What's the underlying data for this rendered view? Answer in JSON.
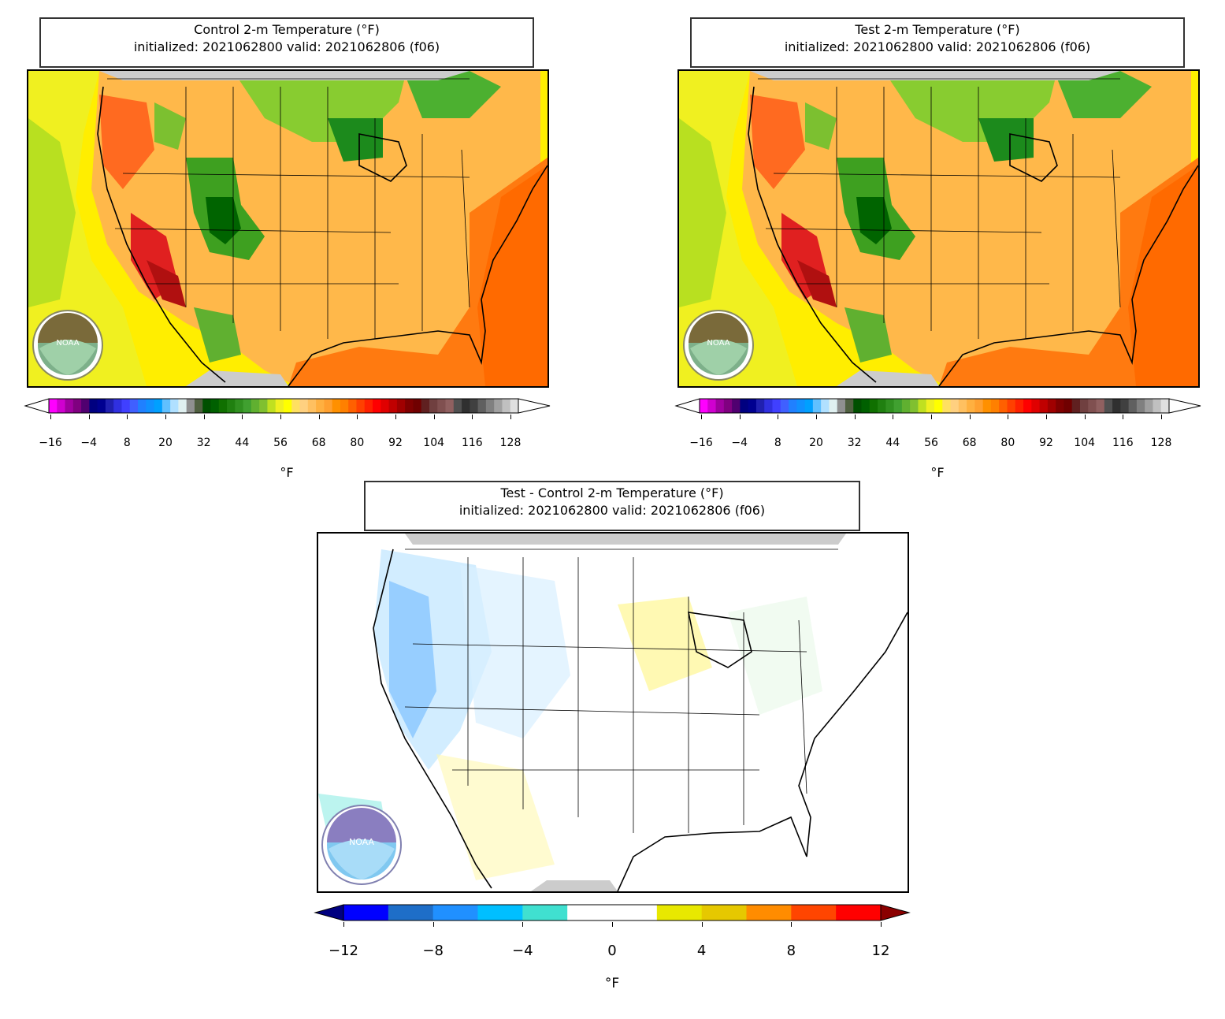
{
  "panels": {
    "control": {
      "title_line1": "Control 2-m Temperature (°F)",
      "title_line2": "initialized: 2021062800 valid: 2021062806 (f06)"
    },
    "test": {
      "title_line1": "Test 2-m Temperature (°F)",
      "title_line2": "initialized: 2021062800 valid: 2021062806 (f06)"
    },
    "diff": {
      "title_line1": "Test - Control 2-m Temperature (°F)",
      "title_line2": "initialized: 2021062800 valid: 2021062806 (f06)"
    }
  },
  "temp_colorbar": {
    "units": "°F",
    "ticks": [
      "−16",
      "−4",
      "8",
      "20",
      "32",
      "44",
      "56",
      "68",
      "80",
      "92",
      "104",
      "116",
      "128"
    ],
    "colors": [
      "#ff00ff",
      "#d000d0",
      "#a000a0",
      "#800080",
      "#500070",
      "#000080",
      "#000090",
      "#2020b0",
      "#3030e0",
      "#4040ff",
      "#4060ff",
      "#2080ff",
      "#1090ff",
      "#00a0ff",
      "#60c0ff",
      "#b0e0ff",
      "#e0f0f0",
      "#909090",
      "#506040",
      "#005000",
      "#006000",
      "#107000",
      "#208010",
      "#309020",
      "#40a030",
      "#60b030",
      "#80c030",
      "#c0e020",
      "#f0f020",
      "#ffff00",
      "#ffe060",
      "#ffd080",
      "#ffc060",
      "#ffb040",
      "#ffa030",
      "#ff9000",
      "#ff8000",
      "#ff6000",
      "#ff4000",
      "#ff2000",
      "#ff0000",
      "#e00000",
      "#c00000",
      "#a00000",
      "#800000",
      "#700000",
      "#602020",
      "#704040",
      "#805050",
      "#906060",
      "#505050",
      "#303030",
      "#404040",
      "#606060",
      "#808080",
      "#a0a0a0",
      "#c0c0c0",
      "#e0e0e0"
    ]
  },
  "diff_colorbar": {
    "units": "°F",
    "ticks": [
      "−12",
      "−8",
      "−4",
      "0",
      "4",
      "8",
      "12"
    ],
    "colors": [
      "#0000ff",
      "#1e6ec8",
      "#2090ff",
      "#00bfff",
      "#40e0d0",
      "#ffffff",
      "#ffffff",
      "#e8e800",
      "#e6c800",
      "#ff8c00",
      "#ff4500",
      "#ff0000"
    ],
    "extend_low": "#000080",
    "extend_high": "#8b0000"
  },
  "logo_text": "NOAA"
}
